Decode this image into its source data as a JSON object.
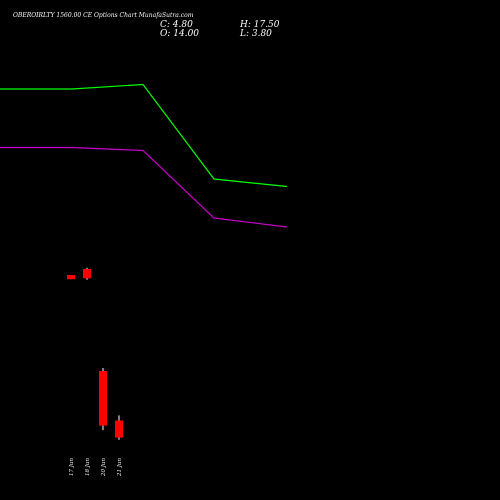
{
  "chart_data": {
    "type": "candlestick",
    "title": "OBEROIRLTY 1560.00 CE Options Chart MunafaSutra.com",
    "ohlc_summary": {
      "close": "C: 4.80",
      "high": "H: 17.50",
      "open": "O: 14.00",
      "low": "L: 3.80"
    },
    "x_ticks": [
      "17 Jun",
      "18 Jun",
      "20 Jun",
      "21 Jun"
    ],
    "candles": [
      {
        "date": "17 Jun",
        "open": 14.0,
        "high": 14.0,
        "low": 12.6,
        "close": 12.6
      },
      {
        "date": "18 Jun",
        "open": 16.0,
        "high": 16.4,
        "low": 12.4,
        "close": 12.9
      },
      {
        "date": "20 Jun",
        "open": -18.0,
        "high": -17.0,
        "low": -37.7,
        "close": -36.2
      },
      {
        "date": "21 Jun",
        "open": -34.5,
        "high": -32.8,
        "low": -40.9,
        "close": -40.2
      }
    ],
    "series": [
      {
        "name": "",
        "color": "#00ff00",
        "x": [
          0,
          1,
          2,
          3,
          4
        ],
        "values": [
          76.0,
          76.0,
          77.5,
          46.0,
          43.5
        ]
      },
      {
        "name": "",
        "color": "#cc00cc",
        "x": [
          0,
          1,
          2,
          3,
          4
        ],
        "values": [
          56.5,
          56.5,
          55.5,
          33.0,
          30.0
        ]
      }
    ],
    "candle_colors": {
      "bear": "#ff0000",
      "bull": "#00c000"
    },
    "background": "#000000",
    "ylim": [
      -50,
      100
    ],
    "grid": false
  }
}
